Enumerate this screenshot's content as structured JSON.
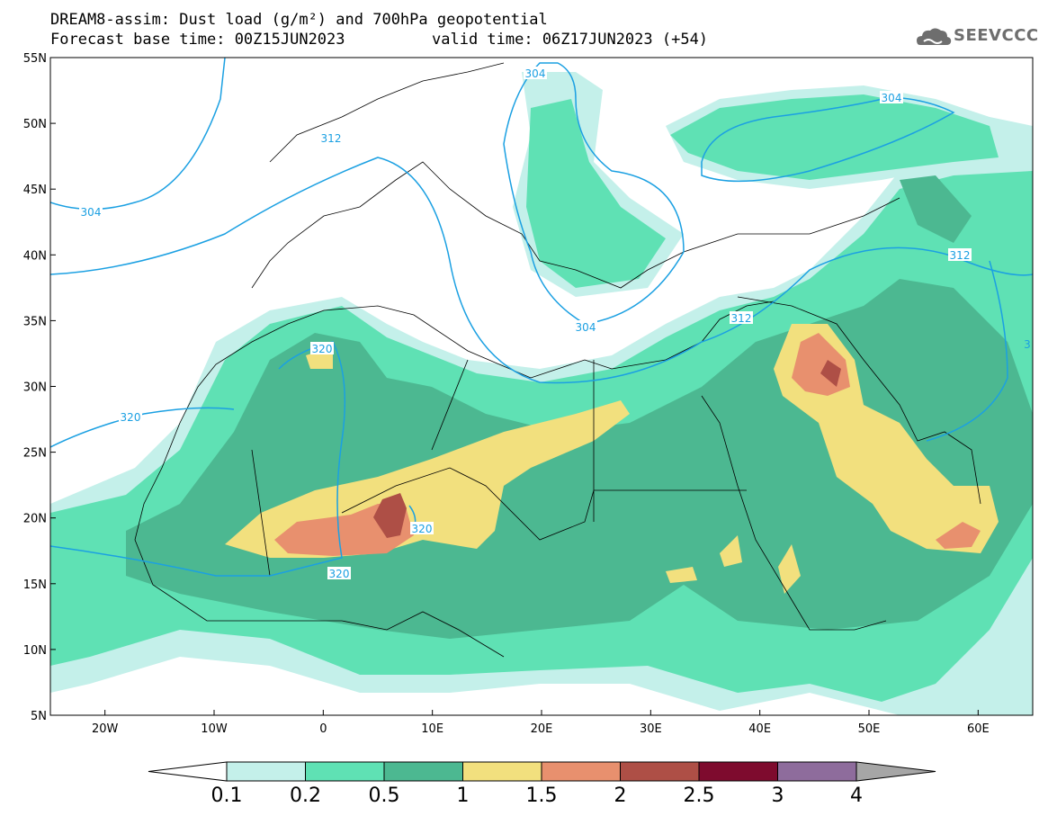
{
  "title": {
    "line1": "DREAM8-assim: Dust load (g/m²) and 700hPa geopotential",
    "line2": "Forecast base time: 00Z15JUN2023",
    "valid": "valid time: 06Z17JUN2023 (+54)"
  },
  "logo": {
    "text": "SEEVCCC",
    "icon": "cloud-logo-icon"
  },
  "axes": {
    "lat_labels": [
      "55N",
      "50N",
      "45N",
      "40N",
      "35N",
      "30N",
      "25N",
      "20N",
      "15N",
      "10N",
      "5N"
    ],
    "lon_labels": [
      "20W",
      "10W",
      "0",
      "10E",
      "20E",
      "30E",
      "40E",
      "50E",
      "60E"
    ],
    "lon_range": [
      -25,
      65
    ],
    "lat_range": [
      5,
      55
    ]
  },
  "contours": {
    "labels": [
      "304",
      "304",
      "304",
      "304",
      "312",
      "312",
      "312",
      "320",
      "320",
      "320",
      "320",
      "3"
    ]
  },
  "colorbar": {
    "levels": [
      "0.1",
      "0.2",
      "0.5",
      "1",
      "1.5",
      "2",
      "2.5",
      "3",
      "4"
    ],
    "colors": [
      "#c4f0ea",
      "#5fe1b4",
      "#4cb891",
      "#f2e07e",
      "#e8906e",
      "#ae4f46",
      "#7e0b2e",
      "#8e6c9c"
    ],
    "under_color": "#ffffff",
    "over_color": "#a6a6a6"
  },
  "colors": {
    "c1": "#c4f0ea",
    "c2": "#5fe1b4",
    "c3": "#4cb891",
    "c4": "#f2e07e",
    "c5": "#e8906e",
    "c6": "#ae4f46",
    "geopotential_line": "#1ba0e2"
  }
}
